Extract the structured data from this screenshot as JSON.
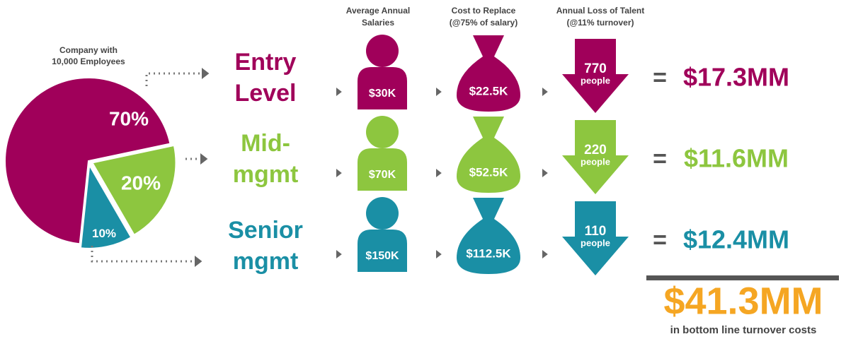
{
  "chart_data": {
    "type": "pie",
    "title": [
      "Company with",
      "10,000 Employees"
    ],
    "values": [
      70,
      20,
      10
    ],
    "value_labels": [
      "70%",
      "20%",
      "10%"
    ],
    "colors": [
      "#a0005a",
      "#8dc63f",
      "#1a8fa5"
    ]
  },
  "headers": [
    [
      "Average Annual",
      "Salaries"
    ],
    [
      "Cost to Replace",
      "(@75% of salary)"
    ],
    [
      "Annual Loss of Talent",
      "(@11% turnover)"
    ]
  ],
  "rows": [
    {
      "label": [
        "Entry",
        "Level"
      ],
      "salary": "$30K",
      "cost": "$22.5K",
      "count": "770",
      "unit": "people",
      "total": "$17.3MM",
      "color": "#a0005a"
    },
    {
      "label": [
        "Mid-",
        "mgmt"
      ],
      "salary": "$70K",
      "cost": "$52.5K",
      "count": "220",
      "unit": "people",
      "total": "$11.6MM",
      "color": "#8dc63f"
    },
    {
      "label": [
        "Senior",
        "mgmt"
      ],
      "salary": "$150K",
      "cost": "$112.5K",
      "count": "110",
      "unit": "people",
      "total": "$12.4MM",
      "color": "#1a8fa5"
    }
  ],
  "equals": "=",
  "grand_total": "$41.3MM",
  "grand_total_caption": "in bottom line turnover costs",
  "grand_total_color": "#f5a623"
}
